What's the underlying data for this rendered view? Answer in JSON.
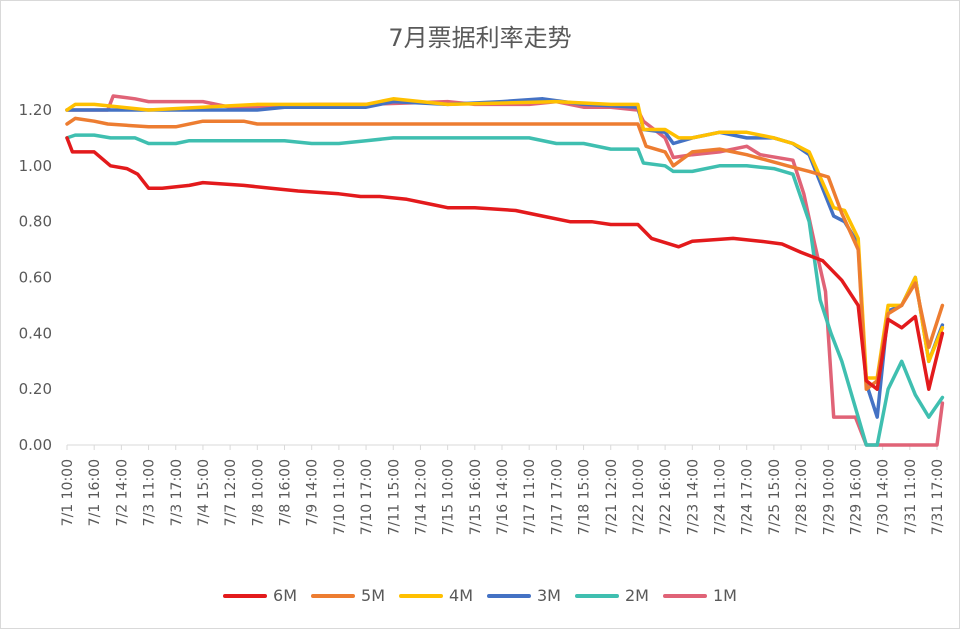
{
  "chart_data": {
    "type": "line",
    "title": "7月票据利率走势",
    "xlabel": "",
    "ylabel": "",
    "ylim": [
      0,
      1.2
    ],
    "yticks": [
      "0.00",
      "0.20",
      "0.40",
      "0.60",
      "0.80",
      "1.00",
      "1.20"
    ],
    "grid": false,
    "legend_position": "bottom",
    "x_tick_labels": [
      "7/1 10:00",
      "7/1 16:00",
      "7/2 14:00",
      "7/3 11:00",
      "7/3 17:00",
      "7/4 15:00",
      "7/7 12:00",
      "7/8 10:00",
      "7/8 16:00",
      "7/9 14:00",
      "7/10 11:00",
      "7/10 17:00",
      "7/11 15:00",
      "7/14 12:00",
      "7/15 10:00",
      "7/15 16:00",
      "7/16 14:00",
      "7/17 11:00",
      "7/17 17:00",
      "7/18 15:00",
      "7/21 12:00",
      "7/22 10:00",
      "7/22 16:00",
      "7/23 14:00",
      "7/24 11:00",
      "7/24 17:00",
      "7/25 15:00",
      "7/28 12:00",
      "7/29 10:00",
      "7/29 16:00",
      "7/30 14:00",
      "7/31 11:00",
      "7/31 17:00"
    ],
    "series": [
      {
        "name": "6M",
        "color": "#e31a1c",
        "points": [
          [
            0,
            1.1
          ],
          [
            0.2,
            1.05
          ],
          [
            1,
            1.05
          ],
          [
            1.6,
            1.0
          ],
          [
            2.2,
            0.99
          ],
          [
            2.6,
            0.97
          ],
          [
            3,
            0.92
          ],
          [
            3.5,
            0.92
          ],
          [
            4.5,
            0.93
          ],
          [
            5,
            0.94
          ],
          [
            6.5,
            0.93
          ],
          [
            7.5,
            0.92
          ],
          [
            8.5,
            0.91
          ],
          [
            10,
            0.9
          ],
          [
            10.8,
            0.89
          ],
          [
            11.5,
            0.89
          ],
          [
            12.5,
            0.88
          ],
          [
            13.5,
            0.86
          ],
          [
            14,
            0.85
          ],
          [
            15,
            0.85
          ],
          [
            16.5,
            0.84
          ],
          [
            17.5,
            0.82
          ],
          [
            18.5,
            0.8
          ],
          [
            19.3,
            0.8
          ],
          [
            20,
            0.79
          ],
          [
            21,
            0.79
          ],
          [
            21.5,
            0.74
          ],
          [
            22.5,
            0.71
          ],
          [
            23,
            0.73
          ],
          [
            24.5,
            0.74
          ],
          [
            25.5,
            0.73
          ],
          [
            26.3,
            0.72
          ],
          [
            27,
            0.69
          ],
          [
            27.8,
            0.66
          ],
          [
            28.5,
            0.59
          ],
          [
            29.1,
            0.5
          ],
          [
            29.4,
            0.23
          ],
          [
            29.8,
            0.2
          ],
          [
            30.2,
            0.45
          ],
          [
            30.7,
            0.42
          ],
          [
            31.2,
            0.46
          ],
          [
            31.7,
            0.2
          ],
          [
            32.2,
            0.4
          ]
        ]
      },
      {
        "name": "5M",
        "color": "#ed7d31",
        "points": [
          [
            0,
            1.15
          ],
          [
            0.3,
            1.17
          ],
          [
            1,
            1.16
          ],
          [
            1.5,
            1.15
          ],
          [
            3,
            1.14
          ],
          [
            4,
            1.14
          ],
          [
            5,
            1.16
          ],
          [
            6.5,
            1.16
          ],
          [
            7,
            1.15
          ],
          [
            21,
            1.15
          ],
          [
            21.3,
            1.07
          ],
          [
            22,
            1.05
          ],
          [
            22.3,
            1.0
          ],
          [
            23,
            1.05
          ],
          [
            24,
            1.06
          ],
          [
            25,
            1.04
          ],
          [
            26.5,
            1.0
          ],
          [
            27.3,
            0.98
          ],
          [
            28,
            0.96
          ],
          [
            28.5,
            0.83
          ],
          [
            29.1,
            0.7
          ],
          [
            29.4,
            0.2
          ],
          [
            29.8,
            0.23
          ],
          [
            30.2,
            0.47
          ],
          [
            30.7,
            0.5
          ],
          [
            31.2,
            0.58
          ],
          [
            31.7,
            0.35
          ],
          [
            32.2,
            0.5
          ]
        ]
      },
      {
        "name": "4M",
        "color": "#ffc000",
        "points": [
          [
            0,
            1.2
          ],
          [
            0.3,
            1.22
          ],
          [
            1,
            1.22
          ],
          [
            3,
            1.2
          ],
          [
            7,
            1.22
          ],
          [
            8,
            1.22
          ],
          [
            9,
            1.22
          ],
          [
            11,
            1.22
          ],
          [
            12,
            1.24
          ],
          [
            14,
            1.22
          ],
          [
            18,
            1.23
          ],
          [
            20,
            1.22
          ],
          [
            21,
            1.22
          ],
          [
            21.2,
            1.13
          ],
          [
            22,
            1.13
          ],
          [
            22.5,
            1.1
          ],
          [
            23,
            1.1
          ],
          [
            24,
            1.12
          ],
          [
            25,
            1.12
          ],
          [
            26,
            1.1
          ],
          [
            26.7,
            1.08
          ],
          [
            27.3,
            1.05
          ],
          [
            28.2,
            0.85
          ],
          [
            28.6,
            0.84
          ],
          [
            29.1,
            0.74
          ],
          [
            29.4,
            0.24
          ],
          [
            29.8,
            0.24
          ],
          [
            30.2,
            0.5
          ],
          [
            30.7,
            0.5
          ],
          [
            31.2,
            0.6
          ],
          [
            31.7,
            0.3
          ],
          [
            32.2,
            0.42
          ]
        ]
      },
      {
        "name": "3M",
        "color": "#4472c4",
        "points": [
          [
            0,
            1.2
          ],
          [
            1,
            1.2
          ],
          [
            2,
            1.2
          ],
          [
            3,
            1.2
          ],
          [
            4.5,
            1.2
          ],
          [
            5.5,
            1.2
          ],
          [
            7,
            1.2
          ],
          [
            8,
            1.21
          ],
          [
            9,
            1.21
          ],
          [
            11,
            1.21
          ],
          [
            12,
            1.23
          ],
          [
            14,
            1.22
          ],
          [
            16,
            1.23
          ],
          [
            17.5,
            1.24
          ],
          [
            19,
            1.22
          ],
          [
            21,
            1.21
          ],
          [
            21.2,
            1.13
          ],
          [
            22,
            1.12
          ],
          [
            22.3,
            1.08
          ],
          [
            23,
            1.1
          ],
          [
            24,
            1.12
          ],
          [
            25,
            1.1
          ],
          [
            26,
            1.1
          ],
          [
            26.7,
            1.08
          ],
          [
            27.3,
            1.04
          ],
          [
            28.2,
            0.82
          ],
          [
            28.6,
            0.8
          ],
          [
            29.1,
            0.72
          ],
          [
            29.4,
            0.22
          ],
          [
            29.8,
            0.1
          ],
          [
            30.2,
            0.48
          ],
          [
            30.7,
            0.5
          ],
          [
            31.2,
            0.6
          ],
          [
            31.7,
            0.3
          ],
          [
            32.2,
            0.43
          ]
        ]
      },
      {
        "name": "2M",
        "color": "#3fbfb0",
        "points": [
          [
            0,
            1.1
          ],
          [
            0.3,
            1.11
          ],
          [
            1,
            1.11
          ],
          [
            1.6,
            1.1
          ],
          [
            2.5,
            1.1
          ],
          [
            3,
            1.08
          ],
          [
            4,
            1.08
          ],
          [
            4.5,
            1.09
          ],
          [
            6,
            1.09
          ],
          [
            7,
            1.09
          ],
          [
            8,
            1.09
          ],
          [
            9,
            1.08
          ],
          [
            10,
            1.08
          ],
          [
            11,
            1.09
          ],
          [
            12,
            1.1
          ],
          [
            14,
            1.1
          ],
          [
            17,
            1.1
          ],
          [
            18,
            1.08
          ],
          [
            19,
            1.08
          ],
          [
            20,
            1.06
          ],
          [
            21,
            1.06
          ],
          [
            21.2,
            1.01
          ],
          [
            22,
            1.0
          ],
          [
            22.3,
            0.98
          ],
          [
            23,
            0.98
          ],
          [
            24,
            1.0
          ],
          [
            25,
            1.0
          ],
          [
            26,
            0.99
          ],
          [
            26.7,
            0.97
          ],
          [
            27.3,
            0.8
          ],
          [
            27.7,
            0.52
          ],
          [
            28.1,
            0.4
          ],
          [
            28.5,
            0.3
          ],
          [
            29.1,
            0.1
          ],
          [
            29.4,
            0.0
          ],
          [
            29.8,
            0.0
          ],
          [
            30.2,
            0.2
          ],
          [
            30.7,
            0.3
          ],
          [
            31.2,
            0.18
          ],
          [
            31.7,
            0.1
          ],
          [
            32.2,
            0.17
          ]
        ]
      },
      {
        "name": "1M",
        "color": "#e06377",
        "points": [
          [
            0,
            1.2
          ],
          [
            1,
            1.2
          ],
          [
            1.5,
            1.2
          ],
          [
            1.7,
            1.25
          ],
          [
            2.5,
            1.24
          ],
          [
            3,
            1.23
          ],
          [
            4,
            1.23
          ],
          [
            5,
            1.23
          ],
          [
            6,
            1.21
          ],
          [
            8,
            1.21
          ],
          [
            9,
            1.22
          ],
          [
            11,
            1.22
          ],
          [
            14,
            1.23
          ],
          [
            15,
            1.22
          ],
          [
            17,
            1.22
          ],
          [
            18,
            1.23
          ],
          [
            19,
            1.21
          ],
          [
            20,
            1.21
          ],
          [
            21,
            1.2
          ],
          [
            21.2,
            1.16
          ],
          [
            22,
            1.1
          ],
          [
            22.3,
            1.03
          ],
          [
            23,
            1.04
          ],
          [
            24,
            1.05
          ],
          [
            25,
            1.07
          ],
          [
            25.5,
            1.04
          ],
          [
            26.7,
            1.02
          ],
          [
            27.1,
            0.9
          ],
          [
            27.5,
            0.72
          ],
          [
            27.9,
            0.55
          ],
          [
            28.2,
            0.1
          ],
          [
            29,
            0.1
          ],
          [
            29.4,
            0.0
          ],
          [
            31,
            0.0
          ],
          [
            32,
            0.0
          ],
          [
            32.2,
            0.15
          ]
        ]
      }
    ]
  }
}
